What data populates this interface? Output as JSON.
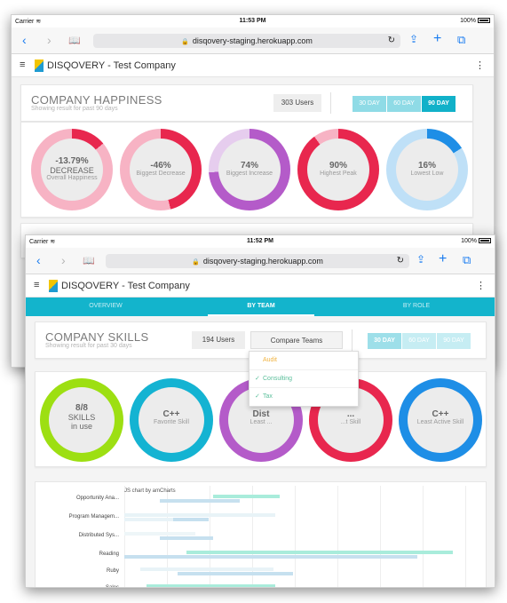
{
  "colors": {
    "accent": "#13b4cc",
    "red": "#e8274e",
    "pink": "#f7b3c4",
    "purple": "#b45bc9",
    "lavender": "#e6cdee",
    "blue": "#1e8ee6",
    "lightblue": "#bfe0f7",
    "lime": "#9ddf12",
    "cyan": "#14b3d2"
  },
  "screenA": {
    "status": {
      "carrier": "Carrier",
      "wifi_icon": "wifi-icon",
      "time": "11:53 PM",
      "battery": "100%"
    },
    "safari": {
      "back_icon": "‹",
      "forward_icon": "›",
      "book_icon": "📖",
      "url": "disqovery-staging.herokuapp.com",
      "reload_icon": "↻",
      "share_icon": "⇪",
      "add_icon": "+",
      "tabs_icon": "⧉"
    },
    "app": {
      "menu_icon": "≡",
      "title": "DISQOVERY - Test Company",
      "kebab_icon": "⋮"
    },
    "header": {
      "title": "COMPANY HAPPINESS",
      "subtitle": "Showing result for past 90 days",
      "users": "303 Users",
      "ranges": [
        "30 DAY",
        "60 DAY",
        "90 DAY"
      ]
    },
    "donuts": [
      {
        "value": "-13.79%",
        "value2": "DECREASE",
        "label": "Overall Happiness",
        "fraction": 0.14
      },
      {
        "value": "-46%",
        "value2": "",
        "label": "Biggest Decrease",
        "fraction": 0.46
      },
      {
        "value": "74%",
        "value2": "",
        "label": "Biggest Increase",
        "fraction": 0.74
      },
      {
        "value": "90%",
        "value2": "",
        "label": "Highest Peak",
        "fraction": 0.9
      },
      {
        "value": "16%",
        "value2": "",
        "label": "Lowest Low",
        "fraction": 0.16
      }
    ]
  },
  "screenB": {
    "status": {
      "carrier": "Carrier",
      "wifi_icon": "wifi-icon",
      "time": "11:52 PM",
      "battery": "100%"
    },
    "safari": {
      "back_icon": "‹",
      "forward_icon": "›",
      "book_icon": "📖",
      "url": "disqovery-staging.herokuapp.com",
      "reload_icon": "↻",
      "share_icon": "⇪",
      "add_icon": "+",
      "tabs_icon": "⧉"
    },
    "app": {
      "menu_icon": "≡",
      "title": "DISQOVERY - Test Company",
      "kebab_icon": "⋮"
    },
    "tabs": [
      "OVERVIEW",
      "BY TEAM",
      "BY ROLE"
    ],
    "header": {
      "title": "COMPANY SKILLS",
      "subtitle": "Showing result for past 30 days",
      "users": "194 Users",
      "compare": "Compare Teams",
      "ranges": [
        "30 DAY",
        "60 DAY",
        "90 DAY"
      ]
    },
    "dropdown": [
      {
        "label": "Audit",
        "selected": false
      },
      {
        "label": "Consulting",
        "selected": true
      },
      {
        "label": "Tax",
        "selected": true
      }
    ],
    "donuts": [
      {
        "value": "8/8",
        "value2": "SKILLS",
        "value3": "in use",
        "label": ""
      },
      {
        "value": "C++",
        "value2": "",
        "value3": "",
        "label": "Favorite Skill"
      },
      {
        "value": "Dist",
        "value2": "",
        "value3": "",
        "label": "Least ..."
      },
      {
        "value": "...",
        "value2": "",
        "value3": "",
        "label": "...t Skill"
      },
      {
        "value": "C++",
        "value2": "",
        "value3": "",
        "label": "Least Active Skill"
      }
    ],
    "chart": {
      "credit": "JS chart by amCharts",
      "categories": [
        "Opportunity Ana...",
        "Program Managem...",
        "Distributed Sys...",
        "Reading",
        "Ruby",
        "Sales"
      ]
    }
  }
}
